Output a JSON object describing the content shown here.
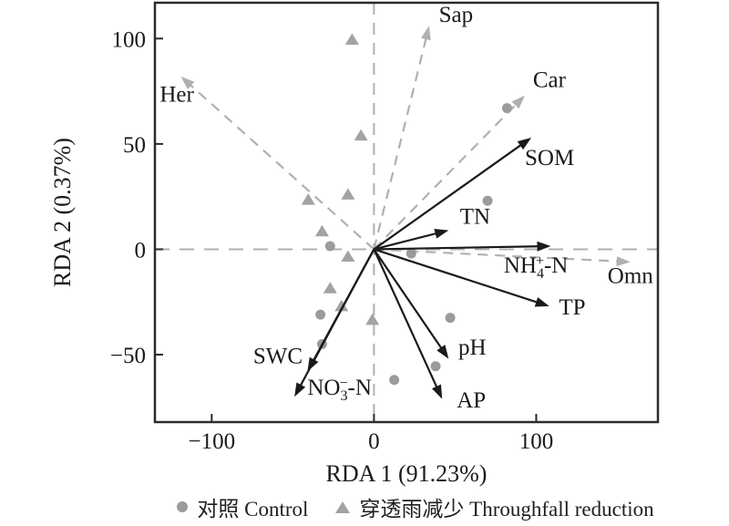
{
  "legend": {
    "control": "对照 Control",
    "throughfall": "穿透雨减少 Throughfall reduction"
  },
  "chart_data": {
    "type": "scatter",
    "subtype": "RDA ordination biplot",
    "xlabel": "RDA 1 (91.23%)",
    "ylabel": "RDA 2 (0.37%)",
    "xlim": [
      -135,
      175
    ],
    "ylim": [
      -82,
      117
    ],
    "xticks": [
      -100,
      0,
      100
    ],
    "yticks": [
      -50,
      0,
      50,
      100
    ],
    "grid": false,
    "zero_lines_dashed": true,
    "legend_position": "bottom-center",
    "colors": {
      "text": "#1a1a1a",
      "env_arrow": "#1a1a1a",
      "species_arrow": "#b0b0b0",
      "dashed_zero_line": "#b0b0b0",
      "control_marker": "#9b9b9b",
      "throughfall_marker": "#a3a3a3",
      "border": "#2b2b2b"
    },
    "series": [
      {
        "name": "对照 Control",
        "marker": "circle",
        "color": "#9b9b9b",
        "points": [
          [
            82,
            67
          ],
          [
            70,
            23
          ],
          [
            23,
            -2
          ],
          [
            -27,
            1.5
          ],
          [
            47,
            -32.5
          ],
          [
            -33,
            -31
          ],
          [
            38,
            -55.5
          ],
          [
            12.5,
            -62
          ],
          [
            -32,
            -45
          ]
        ]
      },
      {
        "name": "穿透雨减少 Throughfall reduction",
        "marker": "triangle",
        "color": "#a3a3a3",
        "points": [
          [
            -13.5,
            99.5
          ],
          [
            -8,
            54
          ],
          [
            -40.5,
            23.5
          ],
          [
            -16,
            26
          ],
          [
            -32,
            8.5
          ],
          [
            -16,
            -3.5
          ],
          [
            -27,
            -18.5
          ],
          [
            -20,
            -27
          ],
          [
            -1,
            -33.5
          ]
        ]
      }
    ],
    "env_arrows": [
      {
        "name": "SOM",
        "label": "SOM",
        "x": 97,
        "y": 53,
        "lx": 93,
        "ly": 40,
        "anchor": "start"
      },
      {
        "name": "TN",
        "label": "TN",
        "x": 46,
        "y": 9,
        "lx": 53,
        "ly": 12,
        "anchor": "start"
      },
      {
        "name": "NH4-N",
        "label_parts": [
          {
            "t": "NH"
          },
          {
            "t": "4",
            "s": "sub"
          },
          {
            "t": "+",
            "s": "sup"
          },
          {
            "t": "-N"
          }
        ],
        "x": 109,
        "y": 1.5,
        "lx": 80,
        "ly": -11,
        "anchor": "start"
      },
      {
        "name": "TP",
        "label": "TP",
        "x": 108,
        "y": -27,
        "lx": 114,
        "ly": -31,
        "anchor": "start"
      },
      {
        "name": "pH",
        "label": "pH",
        "x": 46,
        "y": -52,
        "lx": 52,
        "ly": -50,
        "anchor": "start"
      },
      {
        "name": "AP",
        "label": "AP",
        "x": 42,
        "y": -71,
        "lx": 51,
        "ly": -75,
        "anchor": "start"
      },
      {
        "name": "SWC",
        "label": "SWC",
        "x": -41,
        "y": -58,
        "lx": -44,
        "ly": -54,
        "anchor": "end"
      },
      {
        "name": "NO3-N",
        "label_parts": [
          {
            "t": "NO"
          },
          {
            "t": "3",
            "s": "sub"
          },
          {
            "t": "−",
            "s": "sup"
          },
          {
            "t": "-N"
          }
        ],
        "x": -49,
        "y": -70,
        "lx": -41,
        "ly": -69,
        "anchor": "start"
      }
    ],
    "species_arrows": [
      {
        "name": "Sap",
        "label": "Sap",
        "x": 34,
        "y": 106,
        "lx": 40,
        "ly": 108,
        "anchor": "start"
      },
      {
        "name": "Car",
        "label": "Car",
        "x": 93,
        "y": 73,
        "lx": 98,
        "ly": 77,
        "anchor": "start"
      },
      {
        "name": "Her",
        "label": "Her",
        "x": -119,
        "y": 82,
        "lx": -132,
        "ly": 70,
        "anchor": "start"
      },
      {
        "name": "Omn",
        "label": "Omn",
        "x": 158,
        "y": -6,
        "lx": 144,
        "ly": -16,
        "anchor": "start"
      }
    ]
  }
}
